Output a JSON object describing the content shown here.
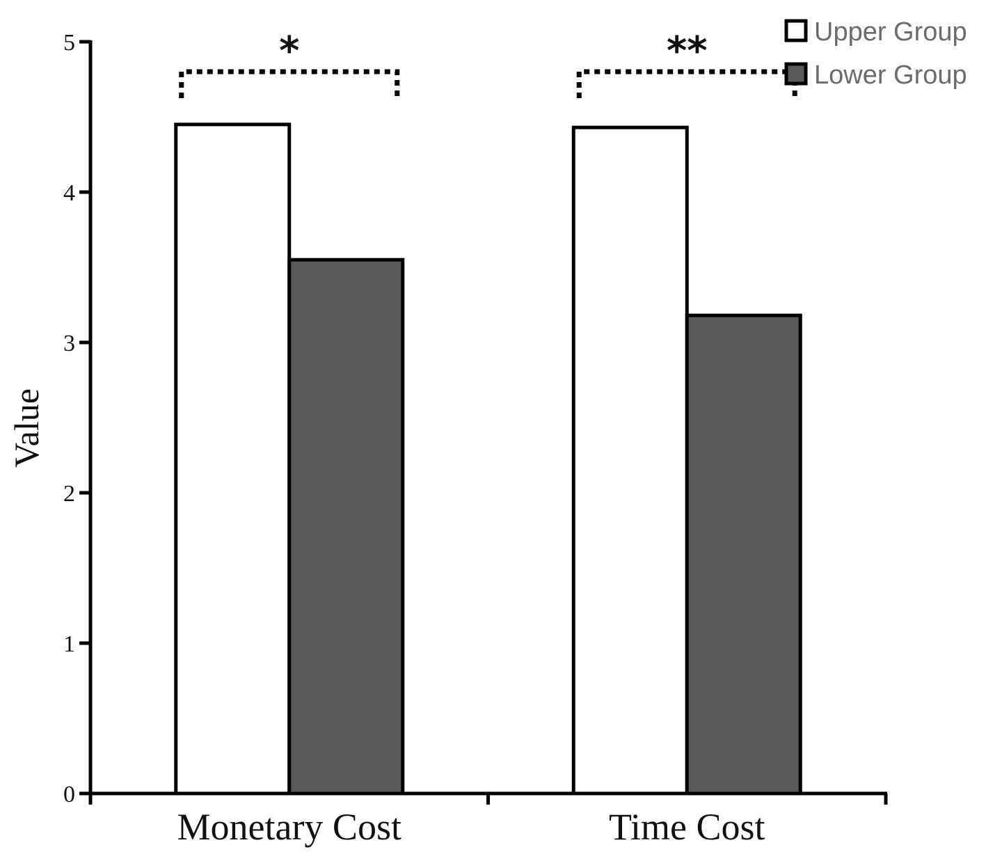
{
  "chart_data": {
    "type": "bar",
    "title": "",
    "xlabel": "",
    "ylabel": "Value",
    "ylim": [
      0,
      5
    ],
    "yticks": [
      "0",
      "1",
      "2",
      "3",
      "4",
      "5"
    ],
    "categories": [
      "Monetary Cost",
      "Time Cost"
    ],
    "series": [
      {
        "name": "Upper Group",
        "values": [
          4.45,
          4.43
        ],
        "color": "#ffffff"
      },
      {
        "name": "Lower Group",
        "values": [
          3.55,
          3.18
        ],
        "color": "#595959"
      }
    ],
    "significance": [
      "*",
      "**"
    ],
    "legend_position": "top-right",
    "grid": false
  }
}
